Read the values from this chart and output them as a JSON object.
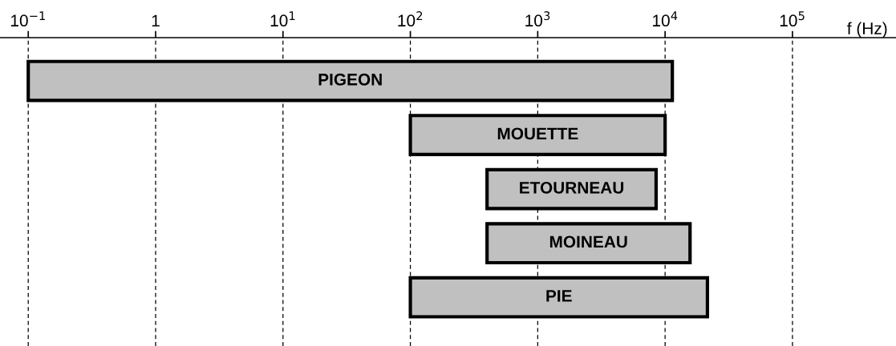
{
  "chart_data": {
    "type": "bar",
    "orientation": "horizontal",
    "xlabel": "f (Hz)",
    "categories": [
      "PIGEON",
      "MOUETTE",
      "ETOURNEAU",
      "MOINEAU",
      "PIE"
    ],
    "base": [
      0.1,
      100,
      400,
      400,
      100
    ],
    "values": [
      11400,
      9900,
      8100,
      15300,
      21400
    ],
    "color": "#c0c0c0",
    "log": "x",
    "xlim": [
      0.06,
      650000
    ],
    "xticks": [
      {
        "value": 0.1,
        "label": "10$^{−1}$"
      },
      1,
      {
        "value": 10,
        "label": "10$^{1}$"
      },
      {
        "value": 100,
        "label": "10$^{2}$"
      },
      {
        "value": 1000,
        "label": "10$^{3}$"
      },
      {
        "value": 10000,
        "label": "10$^{4}$"
      },
      {
        "value": 100000,
        "label": "10$^{5}$"
      }
    ],
    "grid": "x",
    "tick_labels": "x"
  }
}
